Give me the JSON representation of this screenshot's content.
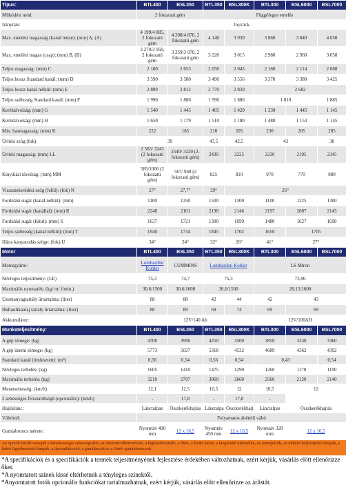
{
  "table": {
    "rows": [
      {
        "label": "Típus:",
        "cells": [
          "BTL400",
          "BSL350",
          "BTL350",
          "BSL300K",
          "BTL300",
          "BSL6000",
          "BSL7000"
        ]
      },
      {
        "label": "Működési mód:",
        "cells": [
          "2 fokozatú gém",
          "Függőleges emelés"
        ]
      },
      {
        "label": "Irányítás:",
        "cells": [
          "Joystick"
        ]
      },
      {
        "label": "Max. emelési magasság (kanál teteje): (mm) A, (A)",
        "cells": [
          "4 199/4 885, 2 fokozatú gém",
          "4 208/4 870, 2 fokozatú gém",
          "4 140",
          "3 930",
          "3 860",
          "3 840",
          "4 050"
        ]
      },
      {
        "label": "Max. emelési magas (csap): (mm) B, (B)",
        "cells": [
          "3 270/3 950, 2 fokozatú gém",
          "3 259/3 970, 2 fokozatú gém",
          "3 220",
          "3 015",
          "2 980",
          "2 960",
          "3 050"
        ]
      },
      {
        "label": "Teljes magasság: (mm) C",
        "cells": [
          "2 180",
          "2 053",
          "2 050",
          "2 045",
          "2 160",
          "2 114",
          "2 060"
        ]
      },
      {
        "label": "Teljes hossz Standard kanál: (mm) D",
        "cells": [
          "3 590",
          "3 580",
          "3 490",
          "3 556",
          "3 370",
          "3 380",
          "3 425"
        ]
      },
      {
        "label": "Teljes hossz kanál nélkül: (mm) E",
        "cells": [
          "2 809",
          "2 812",
          "2 770",
          "2 830",
          "2 682"
        ]
      },
      {
        "label": "Teljes szélesség Standard kanál: (mm) F",
        "cells": [
          "1 990",
          "1 886",
          "1 990",
          "1 886",
          "1 810",
          "1 885"
        ]
      },
      {
        "label": "Keréktávolság: (mm) G",
        "cells": [
          "1 540",
          "1 445",
          "1 405",
          "1 420",
          "1 330",
          "1 445",
          "1 145"
        ]
      },
      {
        "label": "Keréktávolság: (mm) H",
        "cells": [
          "1 650",
          "1 179",
          "1 510",
          "1 180",
          "1 480",
          "1 153",
          "1 145"
        ]
      },
      {
        "label": "Min. hasmagasság: (mm) K",
        "cells": [
          "222",
          "185",
          "210",
          "205",
          "230",
          "205",
          "205"
        ]
      },
      {
        "label": "Ürítési szög (fok)",
        "cells": [
          "39",
          "47,5",
          "42,5",
          "43",
          "38"
        ]
      },
      {
        "label": "Ürítési magasság: (mm) LL",
        "cells": [
          "2 565/ 3245 (2 fokozatú gém)",
          "2540/ 3220 (2- fokozatú gém)",
          "2430",
          "2225",
          "2230",
          "2195",
          "2345"
        ]
      },
      {
        "label": "Kinyúlási távolság: (mm) MM",
        "cells": [
          "585/1000 (2 fokozatú gém)",
          "567/ 948 (2 fokozatú gém)",
          "825",
          "810",
          "970",
          "770",
          "880"
        ]
      },
      {
        "label": "Visszatekerédési szög (felül): (fok) N",
        "cells": [
          "27°",
          "27,7°",
          "29°",
          "26°"
        ]
      },
      {
        "label": "Fordulási sugár (kanál nélkül): (mm)",
        "cells": [
          "1100",
          "1350",
          "1500",
          "1300",
          "1100",
          "1225",
          "1300"
        ]
      },
      {
        "label": "Fordulási sugár (kanállal): (mm) R",
        "cells": [
          "2248",
          "2101",
          "2190",
          "2146",
          "2197",
          "2087",
          "2145"
        ]
      },
      {
        "label": "Fordulási sugár (hátul): (mm) S",
        "cells": [
          "1637",
          "1721",
          "1300",
          "1699",
          "1480",
          "1627",
          "1698"
        ]
      },
      {
        "label": "Teljes szélesség (kanál nélkül): (mm) T",
        "cells": [
          "1940",
          "1734",
          "1845",
          "1702",
          "1650",
          "1705"
        ]
      },
      {
        "label": "Hátra kanyarodás szöge: (fok) U",
        "cells": [
          "34°",
          "24°",
          "32°",
          "26°",
          "41°",
          "27°"
        ]
      },
      {
        "label": "Motor",
        "cells": [
          "BTL400",
          "BSL350",
          "BTL350",
          "BSL300K",
          "BTL300",
          "BSL6000",
          "BSL7000"
        ]
      },
      {
        "label": "Motorgyártó:",
        "cells": [
          "Lombardini Kohler",
          "CUMMINS",
          "Lombardini Kohler",
          "LS Mtron"
        ]
      },
      {
        "label": "Névleges teljesítmény: (LE)",
        "cells": [
          "75,3",
          "74,7",
          "75,3",
          "73,96"
        ]
      },
      {
        "label": "Maximális nyomaték: (kg/ m/ f/min.)",
        "cells": [
          "30,6/1500",
          "30,6/1600",
          "30,6/1500",
          "28,15/1600"
        ]
      },
      {
        "label": "Üzemanyagtartály űrtartalma: (liter)",
        "cells": [
          "88",
          "88",
          "42",
          "44",
          "42",
          "43"
        ]
      },
      {
        "label": "Hidraulikaolaj tartály űrtartalma: (liter)",
        "cells": [
          "88",
          "89",
          "69",
          "74",
          "69",
          "69"
        ]
      },
      {
        "label": "Akkumulátor:",
        "cells": [
          "12V/140 Ah",
          "12V/100AH"
        ]
      },
      {
        "label": "Munkateljesítmény:",
        "cells": [
          "BTL400",
          "BSL350",
          "BTL350",
          "BSL300K",
          "BTL300",
          "BSL6000",
          "BSL7000"
        ]
      },
      {
        "label": "A gép tömege: (kg)",
        "cells": [
          "4700",
          "3990",
          "4250",
          "3500",
          "3850",
          "3330",
          "3360"
        ]
      },
      {
        "label": "A gép üzemi tömege: (kg)",
        "cells": [
          "5773",
          "5027",
          "5318",
          "4532",
          "4689",
          "4362",
          "4392"
        ]
      },
      {
        "label": "Standard kanál (ömlesztett): (m³)",
        "cells": [
          "0,56",
          "0,54",
          "0,56",
          "0,54",
          "0,43",
          "0,54"
        ]
      },
      {
        "label": "Névleges terhelés: (kg)",
        "cells": [
          "1605",
          "1410",
          "1475",
          "1290",
          "1260",
          "1170",
          "1190"
        ]
      },
      {
        "label": "Maximális terhelés: (kg)",
        "cells": [
          "3210",
          "2797",
          "3060",
          "2660",
          "2560",
          "2120",
          "2140"
        ]
      },
      {
        "label": "Menetsebesség: (km/h)",
        "cells": [
          "12,1",
          "12,5",
          "10,5",
          "12",
          "10,5",
          "12"
        ]
      },
      {
        "label": "2 sebességes felszereltségű (opcionális): (km/h)",
        "cells": [
          "-",
          "17,8",
          "-",
          "17,8",
          "-"
        ]
      },
      {
        "label": "Hajtáslánc:",
        "cells": [
          "Lánctalpas",
          "Összkerékhajtás",
          "Lánctalpas",
          "Összkerékhajtás",
          "Lánctalpas",
          "Összkerékhajtás"
        ]
      },
      {
        "label": "Váltómű:",
        "cells": [
          "Folyamatos áttételű váltó"
        ]
      },
      {
        "label": "Gumiabroncs mérete:",
        "cells": [
          "Nyomtáv 400 mm",
          "12 x 16,5",
          "Nyomtáv 450 mm",
          "12 x 16,5",
          "Nyomtáv 320 mm",
          "12 x 16,5"
        ]
      }
    ]
  },
  "note": "Az opciók között szerepel a kétsebességes sebességváltó, az önszintezőberendezés, a légkondicionáló, a fűtés, a lezárt kabin, a kiegészítő hidraulika, az üzemjelzők, az oldalsó helyzetjelző lámpák, a hátsó figyelmeztető lámpák, a tápcsatlakozók, a gumiláncok és a tömör gumiabroncsok.",
  "footnotes": [
    "*A specifikációk és a specifikációk a termék teljesítményének fejlesztése érdekében változhatnak, ezért kérjük, vásárlás előtt ellenőrizze őket.",
    "*A nyomtatott színek kissé eltérhetnek a tényleges színektől.",
    "*Anyomtatott fotók opcionális funkciókat tartalmazhatnak, ezért kérjük, vásárlás előtt ellenőrizze az árlistát."
  ]
}
